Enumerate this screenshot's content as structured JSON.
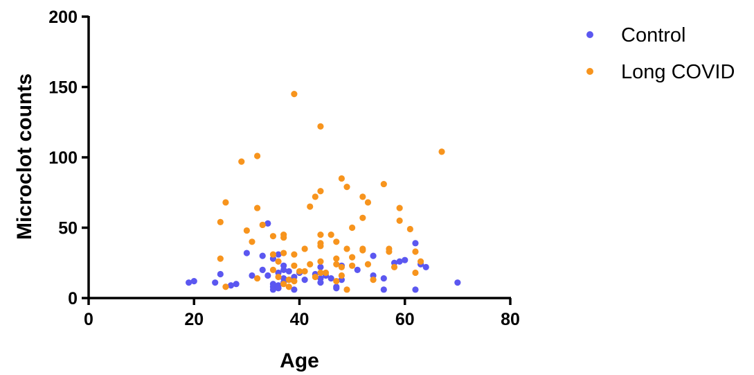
{
  "chart_data": {
    "type": "scatter",
    "title": "",
    "xlabel": "Age",
    "ylabel": "Microclot counts",
    "xlim": [
      0,
      80
    ],
    "ylim": [
      0,
      200
    ],
    "xticks": [
      0,
      20,
      40,
      60,
      80
    ],
    "yticks": [
      0,
      50,
      100,
      150,
      200
    ],
    "grid": false,
    "legend_position": "top-right",
    "series": [
      {
        "name": "Control",
        "color": "#5b57f0",
        "points": [
          [
            19,
            11
          ],
          [
            20,
            12
          ],
          [
            24,
            11
          ],
          [
            25,
            17
          ],
          [
            27,
            9
          ],
          [
            28,
            10
          ],
          [
            30,
            32
          ],
          [
            31,
            16
          ],
          [
            33,
            30
          ],
          [
            33,
            20
          ],
          [
            34,
            53
          ],
          [
            34,
            16
          ],
          [
            35,
            8
          ],
          [
            35,
            6
          ],
          [
            35,
            28
          ],
          [
            35,
            10
          ],
          [
            36,
            9
          ],
          [
            36,
            31
          ],
          [
            36,
            18
          ],
          [
            36,
            7
          ],
          [
            37,
            23
          ],
          [
            37,
            14
          ],
          [
            37,
            11
          ],
          [
            37,
            20
          ],
          [
            38,
            19
          ],
          [
            38,
            13
          ],
          [
            39,
            6
          ],
          [
            39,
            15
          ],
          [
            40,
            18
          ],
          [
            41,
            13
          ],
          [
            43,
            17
          ],
          [
            44,
            22
          ],
          [
            44,
            14
          ],
          [
            44,
            11
          ],
          [
            45,
            16
          ],
          [
            46,
            14
          ],
          [
            47,
            8
          ],
          [
            47,
            7
          ],
          [
            48,
            23
          ],
          [
            48,
            13
          ],
          [
            51,
            20
          ],
          [
            54,
            30
          ],
          [
            54,
            16
          ],
          [
            56,
            6
          ],
          [
            56,
            14
          ],
          [
            58,
            25
          ],
          [
            59,
            26
          ],
          [
            60,
            27
          ],
          [
            62,
            39
          ],
          [
            62,
            6
          ],
          [
            63,
            24
          ],
          [
            64,
            22
          ],
          [
            70,
            11
          ]
        ]
      },
      {
        "name": "Long COVID",
        "color": "#f7941d",
        "points": [
          [
            25,
            54
          ],
          [
            25,
            28
          ],
          [
            26,
            68
          ],
          [
            26,
            8
          ],
          [
            29,
            97
          ],
          [
            30,
            48
          ],
          [
            31,
            40
          ],
          [
            32,
            101
          ],
          [
            32,
            64
          ],
          [
            32,
            14
          ],
          [
            33,
            52
          ],
          [
            35,
            31
          ],
          [
            35,
            20
          ],
          [
            35,
            44
          ],
          [
            36,
            15
          ],
          [
            36,
            26
          ],
          [
            37,
            45
          ],
          [
            37,
            43
          ],
          [
            37,
            32
          ],
          [
            37,
            10
          ],
          [
            38,
            8
          ],
          [
            38,
            13
          ],
          [
            39,
            145
          ],
          [
            39,
            31
          ],
          [
            39,
            23
          ],
          [
            39,
            12
          ],
          [
            40,
            19
          ],
          [
            41,
            35
          ],
          [
            41,
            19
          ],
          [
            42,
            65
          ],
          [
            42,
            24
          ],
          [
            43,
            72
          ],
          [
            43,
            15
          ],
          [
            44,
            122
          ],
          [
            44,
            76
          ],
          [
            44,
            45
          ],
          [
            44,
            39
          ],
          [
            44,
            37
          ],
          [
            44,
            26
          ],
          [
            44,
            18
          ],
          [
            45,
            18
          ],
          [
            46,
            45
          ],
          [
            47,
            40
          ],
          [
            47,
            28
          ],
          [
            47,
            24
          ],
          [
            47,
            12
          ],
          [
            48,
            85
          ],
          [
            48,
            16
          ],
          [
            48,
            22
          ],
          [
            49,
            79
          ],
          [
            49,
            35
          ],
          [
            49,
            6
          ],
          [
            50,
            50
          ],
          [
            50,
            29
          ],
          [
            50,
            23
          ],
          [
            52,
            72
          ],
          [
            52,
            57
          ],
          [
            52,
            35
          ],
          [
            52,
            34
          ],
          [
            53,
            68
          ],
          [
            53,
            24
          ],
          [
            54,
            13
          ],
          [
            56,
            81
          ],
          [
            57,
            35
          ],
          [
            57,
            33
          ],
          [
            58,
            22
          ],
          [
            59,
            64
          ],
          [
            59,
            55
          ],
          [
            61,
            49
          ],
          [
            62,
            33
          ],
          [
            62,
            18
          ],
          [
            63,
            26
          ],
          [
            67,
            104
          ]
        ]
      }
    ]
  }
}
